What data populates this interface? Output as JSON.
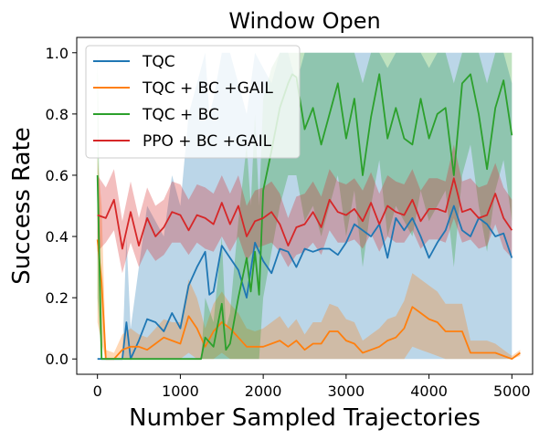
{
  "chart_data": {
    "type": "line",
    "title": "Window Open",
    "xlabel": "Number Sampled Trajectories",
    "ylabel": "Success Rate",
    "xlim": [
      -250,
      5250
    ],
    "ylim": [
      -0.05,
      1.05
    ],
    "xticks": [
      0,
      1000,
      2000,
      3000,
      4000,
      5000
    ],
    "yticks": [
      0.0,
      0.2,
      0.4,
      0.6,
      0.8,
      1.0
    ],
    "xtick_labels": [
      "0",
      "1000",
      "2000",
      "3000",
      "4000",
      "5000"
    ],
    "ytick_labels": [
      "0.0",
      "0.2",
      "0.4",
      "0.6",
      "0.8",
      "1.0"
    ],
    "grid": false,
    "legend_position": "top-left",
    "series": [
      {
        "name": "TQC",
        "color": "#1f77b4",
        "x": [
          0,
          100,
          200,
          300,
          350,
          400,
          500,
          600,
          700,
          800,
          900,
          1000,
          1100,
          1200,
          1300,
          1350,
          1400,
          1500,
          1600,
          1700,
          1800,
          1900,
          2000,
          2100,
          2200,
          2300,
          2400,
          2500,
          2600,
          2700,
          2800,
          2900,
          3000,
          3100,
          3200,
          3300,
          3400,
          3500,
          3600,
          3700,
          3800,
          3900,
          4000,
          4100,
          4200,
          4300,
          4400,
          4500,
          4600,
          4700,
          4800,
          4900,
          5000
        ],
        "y": [
          0.0,
          0.0,
          0.0,
          0.0,
          0.12,
          0.0,
          0.06,
          0.13,
          0.12,
          0.09,
          0.15,
          0.1,
          0.24,
          0.3,
          0.35,
          0.21,
          0.22,
          0.37,
          0.33,
          0.29,
          0.2,
          0.38,
          0.32,
          0.28,
          0.36,
          0.35,
          0.3,
          0.36,
          0.35,
          0.36,
          0.36,
          0.34,
          0.38,
          0.44,
          0.42,
          0.4,
          0.44,
          0.33,
          0.46,
          0.42,
          0.46,
          0.4,
          0.33,
          0.38,
          0.42,
          0.5,
          0.42,
          0.4,
          0.46,
          0.44,
          0.4,
          0.41,
          0.33
        ],
        "band_low": [
          0,
          0,
          0,
          0,
          0,
          0,
          0,
          0,
          0,
          0,
          0,
          0,
          0,
          0,
          0,
          0,
          0,
          0,
          0,
          0,
          0,
          0,
          0,
          0,
          0,
          0,
          0,
          0,
          0,
          0,
          0,
          0,
          0,
          0,
          0,
          0,
          0,
          0,
          0,
          0,
          0,
          0,
          0,
          0,
          0,
          0,
          0,
          0,
          0,
          0,
          0,
          0,
          0
        ],
        "band_high": [
          0,
          0,
          0,
          0,
          0.4,
          0.1,
          0.3,
          0.5,
          0.45,
          0.4,
          0.6,
          0.5,
          0.8,
          0.9,
          1.0,
          0.8,
          0.85,
          1.0,
          1.0,
          0.9,
          0.8,
          1.0,
          0.95,
          0.9,
          1.0,
          1.0,
          0.9,
          1.0,
          1.0,
          1.0,
          1.0,
          1.0,
          1.0,
          1.0,
          1.0,
          1.0,
          1.0,
          0.95,
          1.0,
          1.0,
          1.0,
          1.0,
          0.95,
          1.0,
          1.0,
          1.0,
          1.0,
          1.0,
          1.0,
          1.0,
          1.0,
          1.0,
          0.9
        ]
      },
      {
        "name": "TQC + BC +GAIL",
        "color": "#ff7f0e",
        "x": [
          0,
          50,
          100,
          200,
          300,
          400,
          500,
          600,
          700,
          800,
          900,
          1000,
          1100,
          1200,
          1300,
          1400,
          1500,
          1600,
          1700,
          1800,
          1900,
          2000,
          2100,
          2200,
          2300,
          2400,
          2500,
          2600,
          2700,
          2800,
          2900,
          3000,
          3100,
          3200,
          3300,
          3400,
          3500,
          3600,
          3700,
          3800,
          3900,
          4000,
          4100,
          4200,
          4300,
          4400,
          4500,
          4600,
          4700,
          4800,
          4900,
          5000,
          5100
        ],
        "y": [
          0.39,
          0.25,
          0.0,
          0.0,
          0.03,
          0.04,
          0.04,
          0.03,
          0.05,
          0.07,
          0.06,
          0.05,
          0.14,
          0.1,
          0.04,
          0.09,
          0.12,
          0.1,
          0.07,
          0.04,
          0.04,
          0.04,
          0.05,
          0.06,
          0.04,
          0.06,
          0.03,
          0.05,
          0.05,
          0.09,
          0.09,
          0.06,
          0.05,
          0.02,
          0.03,
          0.04,
          0.06,
          0.07,
          0.1,
          0.17,
          0.15,
          0.13,
          0.12,
          0.09,
          0.09,
          0.09,
          0.02,
          0.02,
          0.02,
          0.02,
          0.01,
          0.0,
          0.02
        ],
        "band_low": [
          0.12,
          0.05,
          0,
          0,
          0,
          0,
          0,
          0,
          0,
          0,
          0,
          0,
          0.02,
          0,
          0,
          0,
          0.02,
          0,
          0,
          0,
          0,
          0,
          0,
          0,
          0,
          0,
          0,
          0,
          0,
          0,
          0,
          0,
          0,
          0,
          0,
          0,
          0,
          0,
          0,
          0.04,
          0.03,
          0.02,
          0.01,
          0,
          0,
          0,
          0,
          0,
          0,
          0,
          0,
          0,
          0.01
        ],
        "band_high": [
          0.66,
          0.5,
          0.03,
          0.02,
          0.08,
          0.1,
          0.08,
          0.07,
          0.1,
          0.13,
          0.12,
          0.12,
          0.26,
          0.2,
          0.1,
          0.18,
          0.22,
          0.18,
          0.15,
          0.1,
          0.09,
          0.1,
          0.12,
          0.14,
          0.1,
          0.13,
          0.08,
          0.12,
          0.12,
          0.18,
          0.17,
          0.13,
          0.12,
          0.06,
          0.08,
          0.1,
          0.13,
          0.14,
          0.19,
          0.28,
          0.26,
          0.24,
          0.22,
          0.18,
          0.18,
          0.18,
          0.06,
          0.06,
          0.06,
          0.05,
          0.03,
          0.01,
          0.03
        ]
      },
      {
        "name": "TQC + BC",
        "color": "#2ca02c",
        "x": [
          0,
          50,
          100,
          200,
          300,
          400,
          500,
          600,
          700,
          800,
          900,
          1000,
          1100,
          1200,
          1250,
          1300,
          1400,
          1500,
          1550,
          1600,
          1700,
          1800,
          1850,
          1900,
          1950,
          2000,
          2100,
          2200,
          2300,
          2350,
          2400,
          2500,
          2600,
          2700,
          2800,
          2900,
          3000,
          3100,
          3200,
          3300,
          3400,
          3500,
          3600,
          3700,
          3800,
          3900,
          4000,
          4100,
          4200,
          4300,
          4400,
          4500,
          4600,
          4700,
          4800,
          4900,
          5000
        ],
        "y": [
          0.6,
          0.0,
          0.0,
          0.0,
          0.0,
          0.0,
          0.0,
          0.0,
          0.0,
          0.0,
          0.0,
          0.0,
          0.0,
          0.0,
          0.0,
          0.07,
          0.04,
          0.18,
          0.03,
          0.05,
          0.2,
          0.33,
          0.22,
          0.35,
          0.21,
          0.55,
          0.68,
          0.82,
          0.9,
          0.93,
          0.92,
          0.75,
          0.82,
          0.7,
          0.8,
          0.9,
          0.72,
          0.85,
          0.6,
          0.79,
          0.93,
          0.72,
          0.82,
          0.72,
          0.7,
          0.85,
          0.72,
          0.8,
          0.82,
          0.6,
          0.9,
          0.93,
          0.8,
          0.62,
          0.82,
          0.91,
          0.73
        ],
        "band_low": [
          0.2,
          0,
          0,
          0,
          0,
          0,
          0,
          0,
          0,
          0,
          0,
          0,
          0,
          0,
          0,
          0,
          0,
          0,
          0,
          0,
          0,
          0,
          0,
          0,
          0,
          0.2,
          0.35,
          0.5,
          0.6,
          0.6,
          0.6,
          0.45,
          0.5,
          0.4,
          0.5,
          0.6,
          0.4,
          0.55,
          0.3,
          0.5,
          0.65,
          0.4,
          0.5,
          0.45,
          0.4,
          0.55,
          0.45,
          0.5,
          0.55,
          0.3,
          0.6,
          0.7,
          0.5,
          0.35,
          0.55,
          0.65,
          0.45
        ],
        "band_high": [
          1.0,
          0,
          0,
          0,
          0,
          0,
          0,
          0,
          0,
          0,
          0,
          0,
          0,
          0,
          0,
          0.2,
          0.12,
          0.4,
          0.1,
          0.15,
          0.45,
          0.7,
          0.5,
          0.8,
          0.5,
          0.85,
          0.95,
          1.0,
          1.0,
          1.0,
          1.0,
          1.0,
          1.0,
          1.0,
          1.0,
          1.0,
          1.0,
          1.0,
          0.9,
          1.0,
          1.0,
          1.0,
          1.0,
          1.0,
          1.0,
          1.0,
          1.0,
          1.0,
          1.0,
          0.9,
          1.0,
          1.0,
          1.0,
          0.9,
          1.0,
          1.0,
          1.0
        ]
      },
      {
        "name": "PPO + BC +GAIL",
        "color": "#d62728",
        "x": [
          0,
          100,
          200,
          300,
          400,
          500,
          600,
          700,
          800,
          900,
          1000,
          1100,
          1200,
          1300,
          1400,
          1500,
          1600,
          1700,
          1800,
          1900,
          2000,
          2100,
          2200,
          2300,
          2400,
          2500,
          2600,
          2700,
          2800,
          2900,
          3000,
          3100,
          3200,
          3300,
          3400,
          3500,
          3600,
          3700,
          3800,
          3900,
          4000,
          4100,
          4200,
          4300,
          4400,
          4500,
          4600,
          4700,
          4800,
          4900,
          5000
        ],
        "y": [
          0.47,
          0.46,
          0.52,
          0.36,
          0.48,
          0.37,
          0.46,
          0.4,
          0.43,
          0.48,
          0.47,
          0.42,
          0.47,
          0.46,
          0.44,
          0.51,
          0.44,
          0.5,
          0.4,
          0.45,
          0.46,
          0.48,
          0.44,
          0.37,
          0.43,
          0.44,
          0.48,
          0.43,
          0.52,
          0.48,
          0.47,
          0.49,
          0.45,
          0.51,
          0.44,
          0.5,
          0.48,
          0.47,
          0.52,
          0.45,
          0.49,
          0.49,
          0.48,
          0.59,
          0.48,
          0.49,
          0.46,
          0.47,
          0.54,
          0.46,
          0.42
        ],
        "band_low": [
          0.35,
          0.38,
          0.42,
          0.28,
          0.38,
          0.3,
          0.36,
          0.32,
          0.34,
          0.38,
          0.38,
          0.34,
          0.38,
          0.36,
          0.35,
          0.4,
          0.35,
          0.4,
          0.32,
          0.36,
          0.37,
          0.38,
          0.35,
          0.3,
          0.34,
          0.35,
          0.38,
          0.34,
          0.42,
          0.38,
          0.38,
          0.39,
          0.36,
          0.41,
          0.35,
          0.4,
          0.38,
          0.38,
          0.42,
          0.36,
          0.39,
          0.39,
          0.38,
          0.46,
          0.38,
          0.39,
          0.36,
          0.37,
          0.44,
          0.36,
          0.33
        ],
        "band_high": [
          0.6,
          0.56,
          0.62,
          0.45,
          0.58,
          0.46,
          0.56,
          0.5,
          0.52,
          0.58,
          0.57,
          0.52,
          0.57,
          0.56,
          0.54,
          0.6,
          0.54,
          0.6,
          0.5,
          0.55,
          0.56,
          0.58,
          0.54,
          0.46,
          0.53,
          0.54,
          0.58,
          0.53,
          0.62,
          0.58,
          0.57,
          0.59,
          0.55,
          0.61,
          0.54,
          0.6,
          0.58,
          0.57,
          0.62,
          0.55,
          0.59,
          0.59,
          0.58,
          0.7,
          0.58,
          0.59,
          0.56,
          0.57,
          0.64,
          0.56,
          0.52
        ]
      }
    ]
  }
}
